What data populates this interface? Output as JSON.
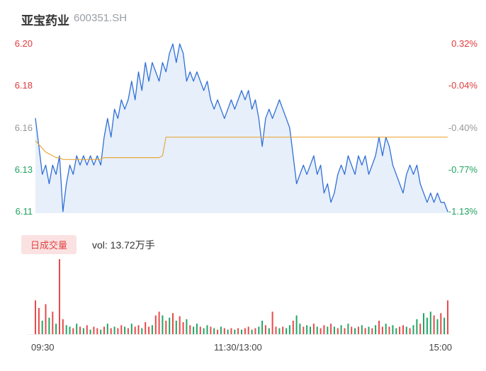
{
  "header": {
    "title": "亚宝药业",
    "code": "600351.SH"
  },
  "chart_data": {
    "type": "line",
    "title": "亚宝药业 600351.SH",
    "prev_close": 6.18,
    "price_min": 6.11,
    "price_max": 6.2,
    "x_axis": [
      "09:30",
      "11:30/13:00",
      "15:00"
    ],
    "y_axis_left": [
      {
        "label": "6.20",
        "color": "#e03b3b"
      },
      {
        "label": "6.18",
        "color": "#e03b3b"
      },
      {
        "label": "6.16",
        "color": "#999999"
      },
      {
        "label": "6.13",
        "color": "#1fa35f"
      },
      {
        "label": "6.11",
        "color": "#1fa35f"
      }
    ],
    "y_axis_right": [
      {
        "label": "0.32%",
        "color": "#e03b3b"
      },
      {
        "label": "-0.04%",
        "color": "#e03b3b"
      },
      {
        "label": "-0.40%",
        "color": "#999999"
      },
      {
        "label": "-0.77%",
        "color": "#1fa35f"
      },
      {
        "label": "-1.13%",
        "color": "#1fa35f"
      }
    ],
    "series": [
      {
        "name": "price",
        "color": "#2f6fd6",
        "fill": "rgba(58,120,220,0.12)",
        "values": [
          6.16,
          6.145,
          6.13,
          6.135,
          6.125,
          6.135,
          6.13,
          6.14,
          6.11,
          6.125,
          6.135,
          6.13,
          6.14,
          6.135,
          6.14,
          6.135,
          6.14,
          6.135,
          6.14,
          6.135,
          6.15,
          6.16,
          6.15,
          6.165,
          6.16,
          6.17,
          6.165,
          6.17,
          6.18,
          6.17,
          6.185,
          6.175,
          6.19,
          6.18,
          6.19,
          6.185,
          6.18,
          6.19,
          6.185,
          6.195,
          6.2,
          6.19,
          6.2,
          6.195,
          6.18,
          6.185,
          6.18,
          6.185,
          6.18,
          6.175,
          6.18,
          6.17,
          6.165,
          6.17,
          6.165,
          6.16,
          6.165,
          6.17,
          6.165,
          6.17,
          6.175,
          6.17,
          6.175,
          6.165,
          6.17,
          6.16,
          6.145,
          6.16,
          6.165,
          6.16,
          6.165,
          6.17,
          6.165,
          6.16,
          6.155,
          6.14,
          6.125,
          6.13,
          6.135,
          6.13,
          6.135,
          6.14,
          6.13,
          6.135,
          6.12,
          6.125,
          6.115,
          6.12,
          6.13,
          6.135,
          6.13,
          6.14,
          6.135,
          6.13,
          6.14,
          6.135,
          6.14,
          6.13,
          6.135,
          6.14,
          6.15,
          6.14,
          6.15,
          6.145,
          6.135,
          6.13,
          6.125,
          6.12,
          6.13,
          6.135,
          6.13,
          6.135,
          6.125,
          6.12,
          6.115,
          6.12,
          6.115,
          6.12,
          6.115,
          6.115,
          6.11
        ]
      },
      {
        "name": "avg",
        "color": "#e7a83e",
        "values": [
          6.148,
          6.146,
          6.144,
          6.142,
          6.141,
          6.14,
          6.139,
          6.139,
          6.138,
          6.138,
          6.138,
          6.138,
          6.138,
          6.138,
          6.138,
          6.138,
          6.138,
          6.138,
          6.138,
          6.138,
          6.139,
          6.139,
          6.139,
          6.139,
          6.139,
          6.139,
          6.139,
          6.139,
          6.139,
          6.139,
          6.139,
          6.139,
          6.139,
          6.139,
          6.139,
          6.139,
          6.139,
          6.14,
          6.15,
          6.15,
          6.15,
          6.15,
          6.15,
          6.15,
          6.15,
          6.15,
          6.15,
          6.15,
          6.15,
          6.15,
          6.15,
          6.15,
          6.15,
          6.15,
          6.15,
          6.15,
          6.15,
          6.15,
          6.15,
          6.15,
          6.15,
          6.15,
          6.15,
          6.15,
          6.15,
          6.15,
          6.15,
          6.15,
          6.15,
          6.15,
          6.15,
          6.15,
          6.15,
          6.15,
          6.15,
          6.15,
          6.15,
          6.15,
          6.15,
          6.15,
          6.15,
          6.15,
          6.15,
          6.15,
          6.15,
          6.15,
          6.15,
          6.15,
          6.15,
          6.15,
          6.15,
          6.15,
          6.15,
          6.15,
          6.15,
          6.15,
          6.15,
          6.15,
          6.15,
          6.15,
          6.15,
          6.15,
          6.15,
          6.15,
          6.15,
          6.15,
          6.15,
          6.15,
          6.15,
          6.15,
          6.15,
          6.15,
          6.15,
          6.15,
          6.15,
          6.15,
          6.15,
          6.15,
          6.15,
          6.15,
          6.15
        ]
      }
    ],
    "volume": {
      "label": "日成交量",
      "text": "vol: 13.72万手",
      "total": "13.72万手",
      "up_color": "#e84a4a",
      "down_color": "#22a566",
      "values": [
        45,
        35,
        18,
        40,
        22,
        30,
        14,
        100,
        20,
        12,
        10,
        8,
        14,
        10,
        8,
        12,
        6,
        10,
        8,
        6,
        10,
        14,
        8,
        10,
        8,
        12,
        10,
        8,
        14,
        10,
        12,
        8,
        16,
        10,
        12,
        25,
        30,
        25,
        18,
        22,
        28,
        18,
        24,
        16,
        20,
        12,
        10,
        14,
        10,
        8,
        12,
        10,
        8,
        6,
        10,
        8,
        6,
        8,
        6,
        8,
        6,
        8,
        10,
        6,
        8,
        10,
        18,
        12,
        8,
        30,
        10,
        8,
        10,
        8,
        12,
        18,
        25,
        14,
        10,
        12,
        10,
        14,
        10,
        8,
        12,
        10,
        14,
        10,
        8,
        12,
        8,
        14,
        10,
        8,
        10,
        12,
        8,
        10,
        8,
        12,
        18,
        10,
        14,
        10,
        12,
        8,
        10,
        12,
        10,
        8,
        12,
        20,
        14,
        28,
        22,
        30,
        25,
        20,
        28,
        22,
        45
      ],
      "dirs": "uudududuuddudududuudududuududuuduuduudududuududduddudududududuududduduududduddudduduududududududududuududduududdudddududuuduuduudu"
    }
  }
}
